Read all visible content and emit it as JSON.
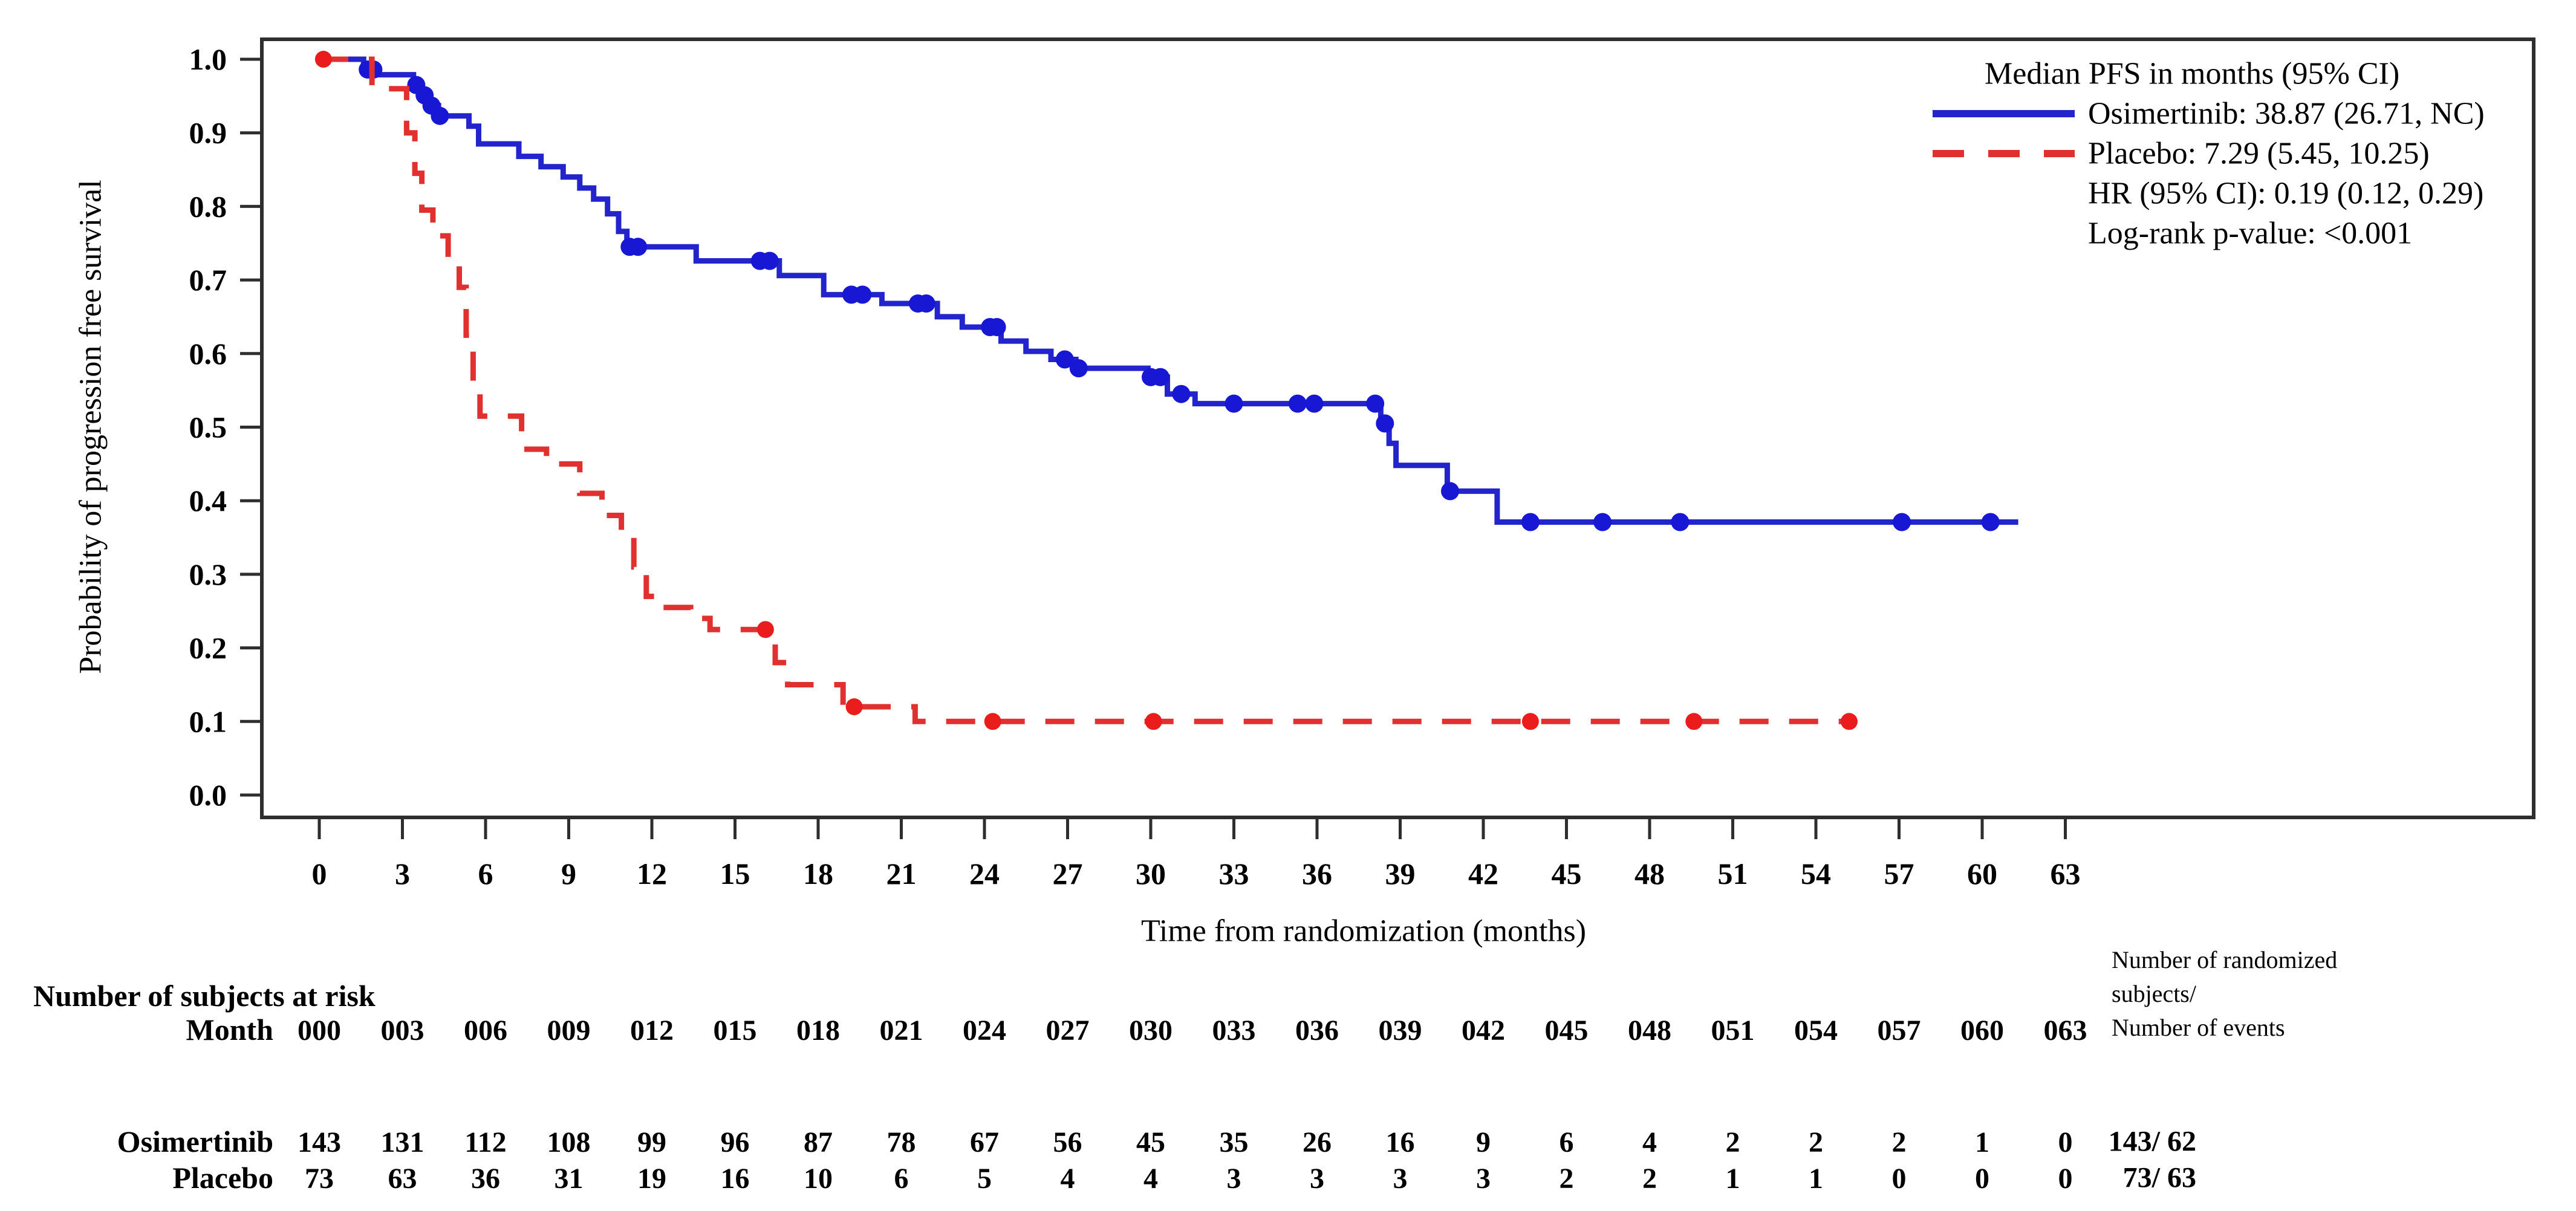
{
  "figure": {
    "y_axis": {
      "label": "Probability of progression free survival",
      "tick_labels": [
        "1.0",
        "0.9",
        "0.8",
        "0.7",
        "0.6",
        "0.5",
        "0.4",
        "0.3",
        "0.2",
        "0.1",
        "0.0"
      ]
    },
    "x_axis": {
      "label": "Time from randomization (months)",
      "tick_labels": [
        "0",
        "3",
        "6",
        "9",
        "12",
        "15",
        "18",
        "21",
        "24",
        "27",
        "30",
        "33",
        "36",
        "39",
        "42",
        "45",
        "48",
        "51",
        "54",
        "57",
        "60",
        "63"
      ]
    },
    "legend": {
      "header": "Median PFS in months (95% CI)",
      "items": [
        {
          "name": "Osimertinib",
          "text": "Osimertinib: 38.87 (26.71, NC)",
          "color": "#2424cc",
          "line_style": "solid"
        },
        {
          "name": "Placebo",
          "text": "Placebo: 7.29 (5.45, 10.25)",
          "color": "#e03030",
          "line_style": "dashed"
        }
      ],
      "hr_text": "HR (95% CI): 0.19 (0.12, 0.29)",
      "logrank_text": "Log-rank p-value: <0.001"
    }
  },
  "style": {
    "frame_color": "#2e2e2e",
    "text_color": "#000000",
    "osimertinib_line": "#2424cc",
    "osimertinib_marker": "#1717d4",
    "placebo_line": "#e03030",
    "placebo_marker": "#ea1c1c"
  },
  "chart_data": {
    "type": "line",
    "subtype": "kaplan-meier-step",
    "title": "",
    "xlabel": "Time from randomization (months)",
    "ylabel": "Probability of progression free survival",
    "xlim": [
      0,
      66
    ],
    "ylim": [
      0.0,
      1.0
    ],
    "grid": false,
    "legend_position": "top-right",
    "x_ticks": [
      "0",
      "3",
      "6",
      "9",
      "12",
      "15",
      "18",
      "21",
      "24",
      "27",
      "30",
      "33",
      "36",
      "39",
      "42",
      "45",
      "48",
      "51",
      "54",
      "57",
      "60",
      "63"
    ],
    "y_ticks": [
      "0.0",
      "0.1",
      "0.2",
      "0.3",
      "0.4",
      "0.5",
      "0.6",
      "0.7",
      "0.8",
      "0.9",
      "1.0"
    ],
    "series": [
      {
        "name": "Osimertinib",
        "median_pfs_months": "38.87 (26.71, NC)",
        "color": "#2424cc",
        "marker_color": "#1717d4",
        "line_style": "solid",
        "end_time": 61.3,
        "steps": [
          [
            0,
            1.0
          ],
          [
            1.6,
            0.986
          ],
          [
            2.1,
            0.979
          ],
          [
            3.4,
            0.965
          ],
          [
            3.7,
            0.951
          ],
          [
            3.95,
            0.937
          ],
          [
            4.3,
            0.923
          ],
          [
            5.4,
            0.909
          ],
          [
            5.75,
            0.885
          ],
          [
            7.2,
            0.868
          ],
          [
            8.0,
            0.854
          ],
          [
            8.8,
            0.84
          ],
          [
            9.4,
            0.825
          ],
          [
            9.9,
            0.81
          ],
          [
            10.4,
            0.79
          ],
          [
            10.8,
            0.766
          ],
          [
            11.1,
            0.745
          ],
          [
            13.6,
            0.726
          ],
          [
            16.6,
            0.706
          ],
          [
            18.2,
            0.68
          ],
          [
            20.3,
            0.668
          ],
          [
            22.3,
            0.65
          ],
          [
            23.2,
            0.636
          ],
          [
            24.6,
            0.617
          ],
          [
            25.5,
            0.603
          ],
          [
            26.4,
            0.592
          ],
          [
            27.3,
            0.58
          ],
          [
            29.9,
            0.568
          ],
          [
            30.6,
            0.545
          ],
          [
            31.6,
            0.532
          ],
          [
            38.3,
            0.505
          ],
          [
            38.6,
            0.478
          ],
          [
            38.85,
            0.448
          ],
          [
            40.7,
            0.413
          ],
          [
            42.5,
            0.371
          ]
        ],
        "censor_marks": [
          [
            1.75,
            0.986
          ],
          [
            1.95,
            0.986
          ],
          [
            3.5,
            0.965
          ],
          [
            3.8,
            0.951
          ],
          [
            4.05,
            0.937
          ],
          [
            4.35,
            0.923
          ],
          [
            11.2,
            0.745
          ],
          [
            11.5,
            0.745
          ],
          [
            15.9,
            0.726
          ],
          [
            16.25,
            0.726
          ],
          [
            19.2,
            0.68
          ],
          [
            19.6,
            0.68
          ],
          [
            21.6,
            0.668
          ],
          [
            21.9,
            0.668
          ],
          [
            24.2,
            0.636
          ],
          [
            24.45,
            0.636
          ],
          [
            26.9,
            0.592
          ],
          [
            27.4,
            0.58
          ],
          [
            30.0,
            0.568
          ],
          [
            30.35,
            0.568
          ],
          [
            31.1,
            0.545
          ],
          [
            33.0,
            0.532
          ],
          [
            35.3,
            0.532
          ],
          [
            35.9,
            0.532
          ],
          [
            38.1,
            0.532
          ],
          [
            38.45,
            0.505
          ],
          [
            40.8,
            0.413
          ],
          [
            43.7,
            0.371
          ],
          [
            46.3,
            0.371
          ],
          [
            49.1,
            0.371
          ],
          [
            57.1,
            0.371
          ],
          [
            60.3,
            0.371
          ]
        ]
      },
      {
        "name": "Placebo",
        "median_pfs_months": "7.29 (5.45, 10.25)",
        "color": "#e03030",
        "marker_color": "#ea1c1c",
        "line_style": "dashed",
        "end_time": 55.4,
        "steps": [
          [
            0,
            1.0
          ],
          [
            1.9,
            0.96
          ],
          [
            3.15,
            0.9
          ],
          [
            3.45,
            0.845
          ],
          [
            3.7,
            0.795
          ],
          [
            4.1,
            0.76
          ],
          [
            4.65,
            0.725
          ],
          [
            5.05,
            0.69
          ],
          [
            5.3,
            0.625
          ],
          [
            5.55,
            0.545
          ],
          [
            5.8,
            0.515
          ],
          [
            7.3,
            0.47
          ],
          [
            8.2,
            0.45
          ],
          [
            9.4,
            0.41
          ],
          [
            10.2,
            0.38
          ],
          [
            10.9,
            0.36
          ],
          [
            11.35,
            0.31
          ],
          [
            11.8,
            0.27
          ],
          [
            12.4,
            0.255
          ],
          [
            13.4,
            0.24
          ],
          [
            14.1,
            0.225
          ],
          [
            16.45,
            0.18
          ],
          [
            16.9,
            0.15
          ],
          [
            18.9,
            0.12
          ],
          [
            21.5,
            0.1
          ]
        ],
        "censor_marks": [
          [
            0.15,
            1.0
          ],
          [
            16.1,
            0.225
          ],
          [
            19.3,
            0.12
          ],
          [
            24.3,
            0.1
          ],
          [
            30.1,
            0.1
          ],
          [
            43.7,
            0.1
          ],
          [
            49.6,
            0.1
          ],
          [
            55.2,
            0.1
          ]
        ]
      }
    ],
    "stats": {
      "hr_text": "HR (95% CI): 0.19 (0.12, 0.29)",
      "logrank_text": "Log-rank p-value: <0.001"
    }
  },
  "risk_table": {
    "header": "Number of subjects at risk",
    "month_label": "Month",
    "month_values": [
      "000",
      "003",
      "006",
      "009",
      "012",
      "015",
      "018",
      "021",
      "024",
      "027",
      "030",
      "033",
      "036",
      "039",
      "042",
      "045",
      "048",
      "051",
      "054",
      "057",
      "060",
      "063"
    ],
    "rows": [
      {
        "label": "Osimertinib",
        "counts": [
          "143",
          "131",
          "112",
          "108",
          "99",
          "96",
          "87",
          "78",
          "67",
          "56",
          "45",
          "35",
          "26",
          "16",
          "9",
          "6",
          "4",
          "2",
          "2",
          "2",
          "1",
          "0"
        ],
        "summary": "143/ 62"
      },
      {
        "label": "Placebo",
        "counts": [
          "73",
          "63",
          "36",
          "31",
          "19",
          "16",
          "10",
          "6",
          "5",
          "4",
          "4",
          "3",
          "3",
          "3",
          "3",
          "2",
          "2",
          "1",
          "1",
          "0",
          "0",
          "0"
        ],
        "summary": "73/ 63"
      }
    ],
    "annotation_lines": [
      "Number of randomized",
      "subjects/",
      "Number of events"
    ]
  }
}
